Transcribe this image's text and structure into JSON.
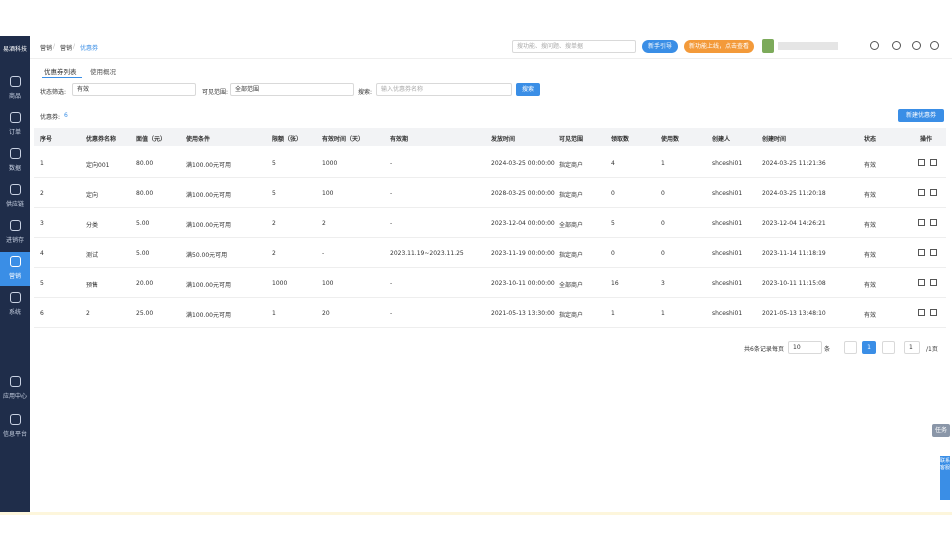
{
  "sidebar": {
    "logo": "易酒科技",
    "menu": [
      "商品",
      "订单",
      "数据",
      "供应链",
      "进销存",
      "营销",
      "系统",
      "应用中心",
      "信息平台"
    ],
    "active": 5
  },
  "header": {
    "breadcrumb": [
      "营销",
      "营销",
      "优惠券"
    ],
    "search_placeholder": "搜功能、搜问题、搜单据",
    "guide_button": "新手引导",
    "news_button": "新功能上线，点击查看"
  },
  "tabs": [
    "优惠券列表",
    "使用概况"
  ],
  "filters": {
    "status_label": "状态筛选:",
    "status_value": "有效",
    "scope_label": "可见范围:",
    "scope_value": "全部范围",
    "search_label": "搜索:",
    "search_placeholder": "输入优惠券名称",
    "search_button": "搜索"
  },
  "summary": {
    "label": "优惠券:",
    "count": "6"
  },
  "create_button": "新建优惠券",
  "table": {
    "headers": [
      "序号",
      "优惠券名称",
      "面值（元）",
      "使用条件",
      "限额（张）",
      "有效时间（天）",
      "有效期",
      "发放时间",
      "可见范围",
      "领取数",
      "使用数",
      "创建人",
      "创建时间",
      "状态",
      "操作"
    ],
    "rows": [
      [
        "1",
        "定向001",
        "80.00",
        "满100.00元可用",
        "5",
        "1000",
        "-",
        "2024-03-25 00:00:00",
        "指定商户",
        "4",
        "1",
        "shceshi01",
        "2024-03-25 11:21:36",
        "有效"
      ],
      [
        "2",
        "定向",
        "80.00",
        "满100.00元可用",
        "5",
        "100",
        "-",
        "2028-03-25 00:00:00",
        "指定商户",
        "0",
        "0",
        "shceshi01",
        "2024-03-25 11:20:18",
        "有效"
      ],
      [
        "3",
        "分类",
        "5.00",
        "满100.00元可用",
        "2",
        "2",
        "-",
        "2023-12-04 00:00:00",
        "全部商户",
        "5",
        "0",
        "shceshi01",
        "2023-12-04 14:26:21",
        "有效"
      ],
      [
        "4",
        "测试",
        "5.00",
        "满50.00元可用",
        "2",
        "-",
        "2023.11.19~2023.11.25",
        "2023-11-19 00:00:00",
        "指定商户",
        "0",
        "0",
        "shceshi01",
        "2023-11-14 11:18:19",
        "有效"
      ],
      [
        "5",
        "预售",
        "20.00",
        "满100.00元可用",
        "1000",
        "100",
        "-",
        "2023-10-11 00:00:00",
        "全部商户",
        "16",
        "3",
        "shceshi01",
        "2023-10-11 11:15:08",
        "有效"
      ],
      [
        "6",
        "2",
        "25.00",
        "满100.00元可用",
        "1",
        "20",
        "-",
        "2021-05-13 13:30:00",
        "指定商户",
        "1",
        "1",
        "shceshi01",
        "2021-05-13 13:48:10",
        "有效"
      ]
    ]
  },
  "pagination": {
    "total": "共6条记录",
    "per_page_label": "每页",
    "per_page": "10",
    "per_page_unit": "条",
    "current_page": "1",
    "goto": "1",
    "pages": "/1页"
  },
  "float": {
    "task": "任务",
    "service": "联系客服"
  }
}
